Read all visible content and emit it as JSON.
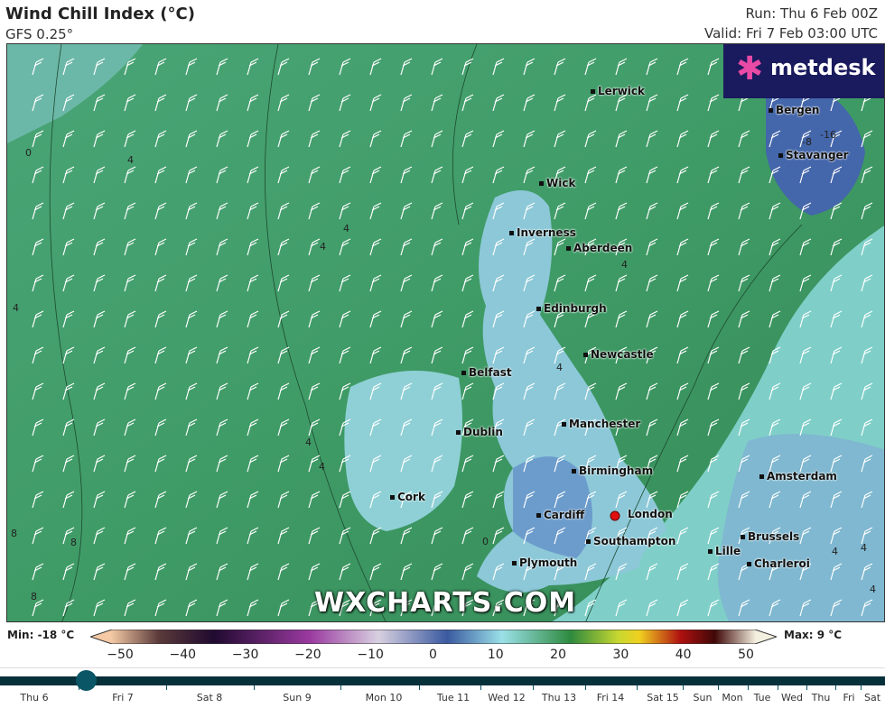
{
  "header": {
    "title": "Wind Chill Index (°C)",
    "model": "GFS 0.25°",
    "run": "Run: Thu 6 Feb 00Z",
    "valid": "Valid: Fri 7 Feb 03:00 UTC"
  },
  "logo": {
    "text": "metdesk"
  },
  "watermark": "WXCHARTS.COM",
  "cities": [
    "Lerwick",
    "Bergen",
    "Stavanger",
    "Wick",
    "Inverness",
    "Aberdeen",
    "Edinburgh",
    "Newcastle",
    "Belfast",
    "Manchester",
    "Dublin",
    "Birmingham",
    "Amsterdam",
    "Cork",
    "Cardiff",
    "London",
    "Southampton",
    "Brussels",
    "Lille",
    "Charleroi",
    "Plymouth"
  ],
  "contour_labels": [
    "0",
    "4",
    "4",
    "4",
    "4",
    "4",
    "4",
    "4",
    "4",
    "8",
    "8",
    "8",
    "-16",
    "-8",
    "4",
    "4",
    "0",
    "4"
  ],
  "colors": {
    "sea": "#3e9a64",
    "land_cold": "#8fd2d8",
    "highlight": "#e01010",
    "timeline": "#06303a"
  },
  "legend": {
    "min": "Min: -18 °C",
    "max": "Max: 9 °C",
    "ticks": [
      "−50",
      "−40",
      "−30",
      "−20",
      "−10",
      "0",
      "10",
      "20",
      "30",
      "40",
      "50"
    ]
  },
  "timeline": {
    "days": [
      "Thu 6",
      "Fri 7",
      "Sat 8",
      "Sun 9",
      "Mon 10",
      "Tue 11",
      "Wed 12",
      "Thu 13",
      "Fri 14",
      "Sat 15",
      "Sun",
      "Mon",
      "Tue",
      "Wed",
      "Thu",
      "Fri",
      "Sat"
    ],
    "current": "Fri 7 03:00"
  }
}
